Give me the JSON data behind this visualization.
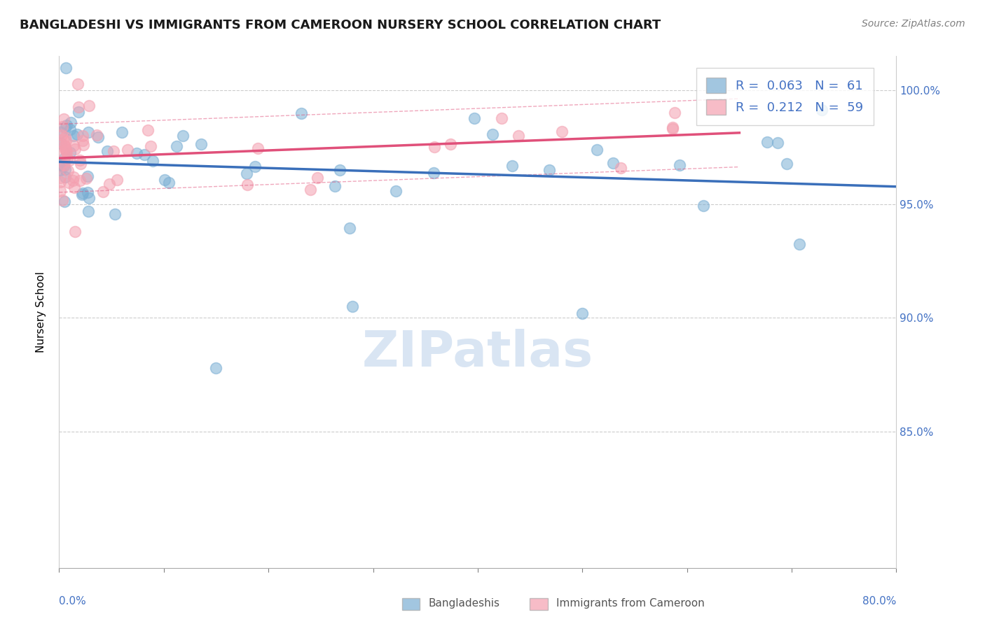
{
  "title": "BANGLADESHI VS IMMIGRANTS FROM CAMEROON NURSERY SCHOOL CORRELATION CHART",
  "source": "Source: ZipAtlas.com",
  "ylabel": "Nursery School",
  "xlim": [
    0.0,
    80.0
  ],
  "ylim": [
    79.0,
    101.5
  ],
  "blue_R": 0.063,
  "blue_N": 61,
  "pink_R": 0.212,
  "pink_N": 59,
  "blue_color": "#7bafd4",
  "pink_color": "#f4a0b0",
  "blue_line_color": "#3a6fba",
  "pink_line_color": "#e0507a",
  "watermark": "ZIPatlas"
}
